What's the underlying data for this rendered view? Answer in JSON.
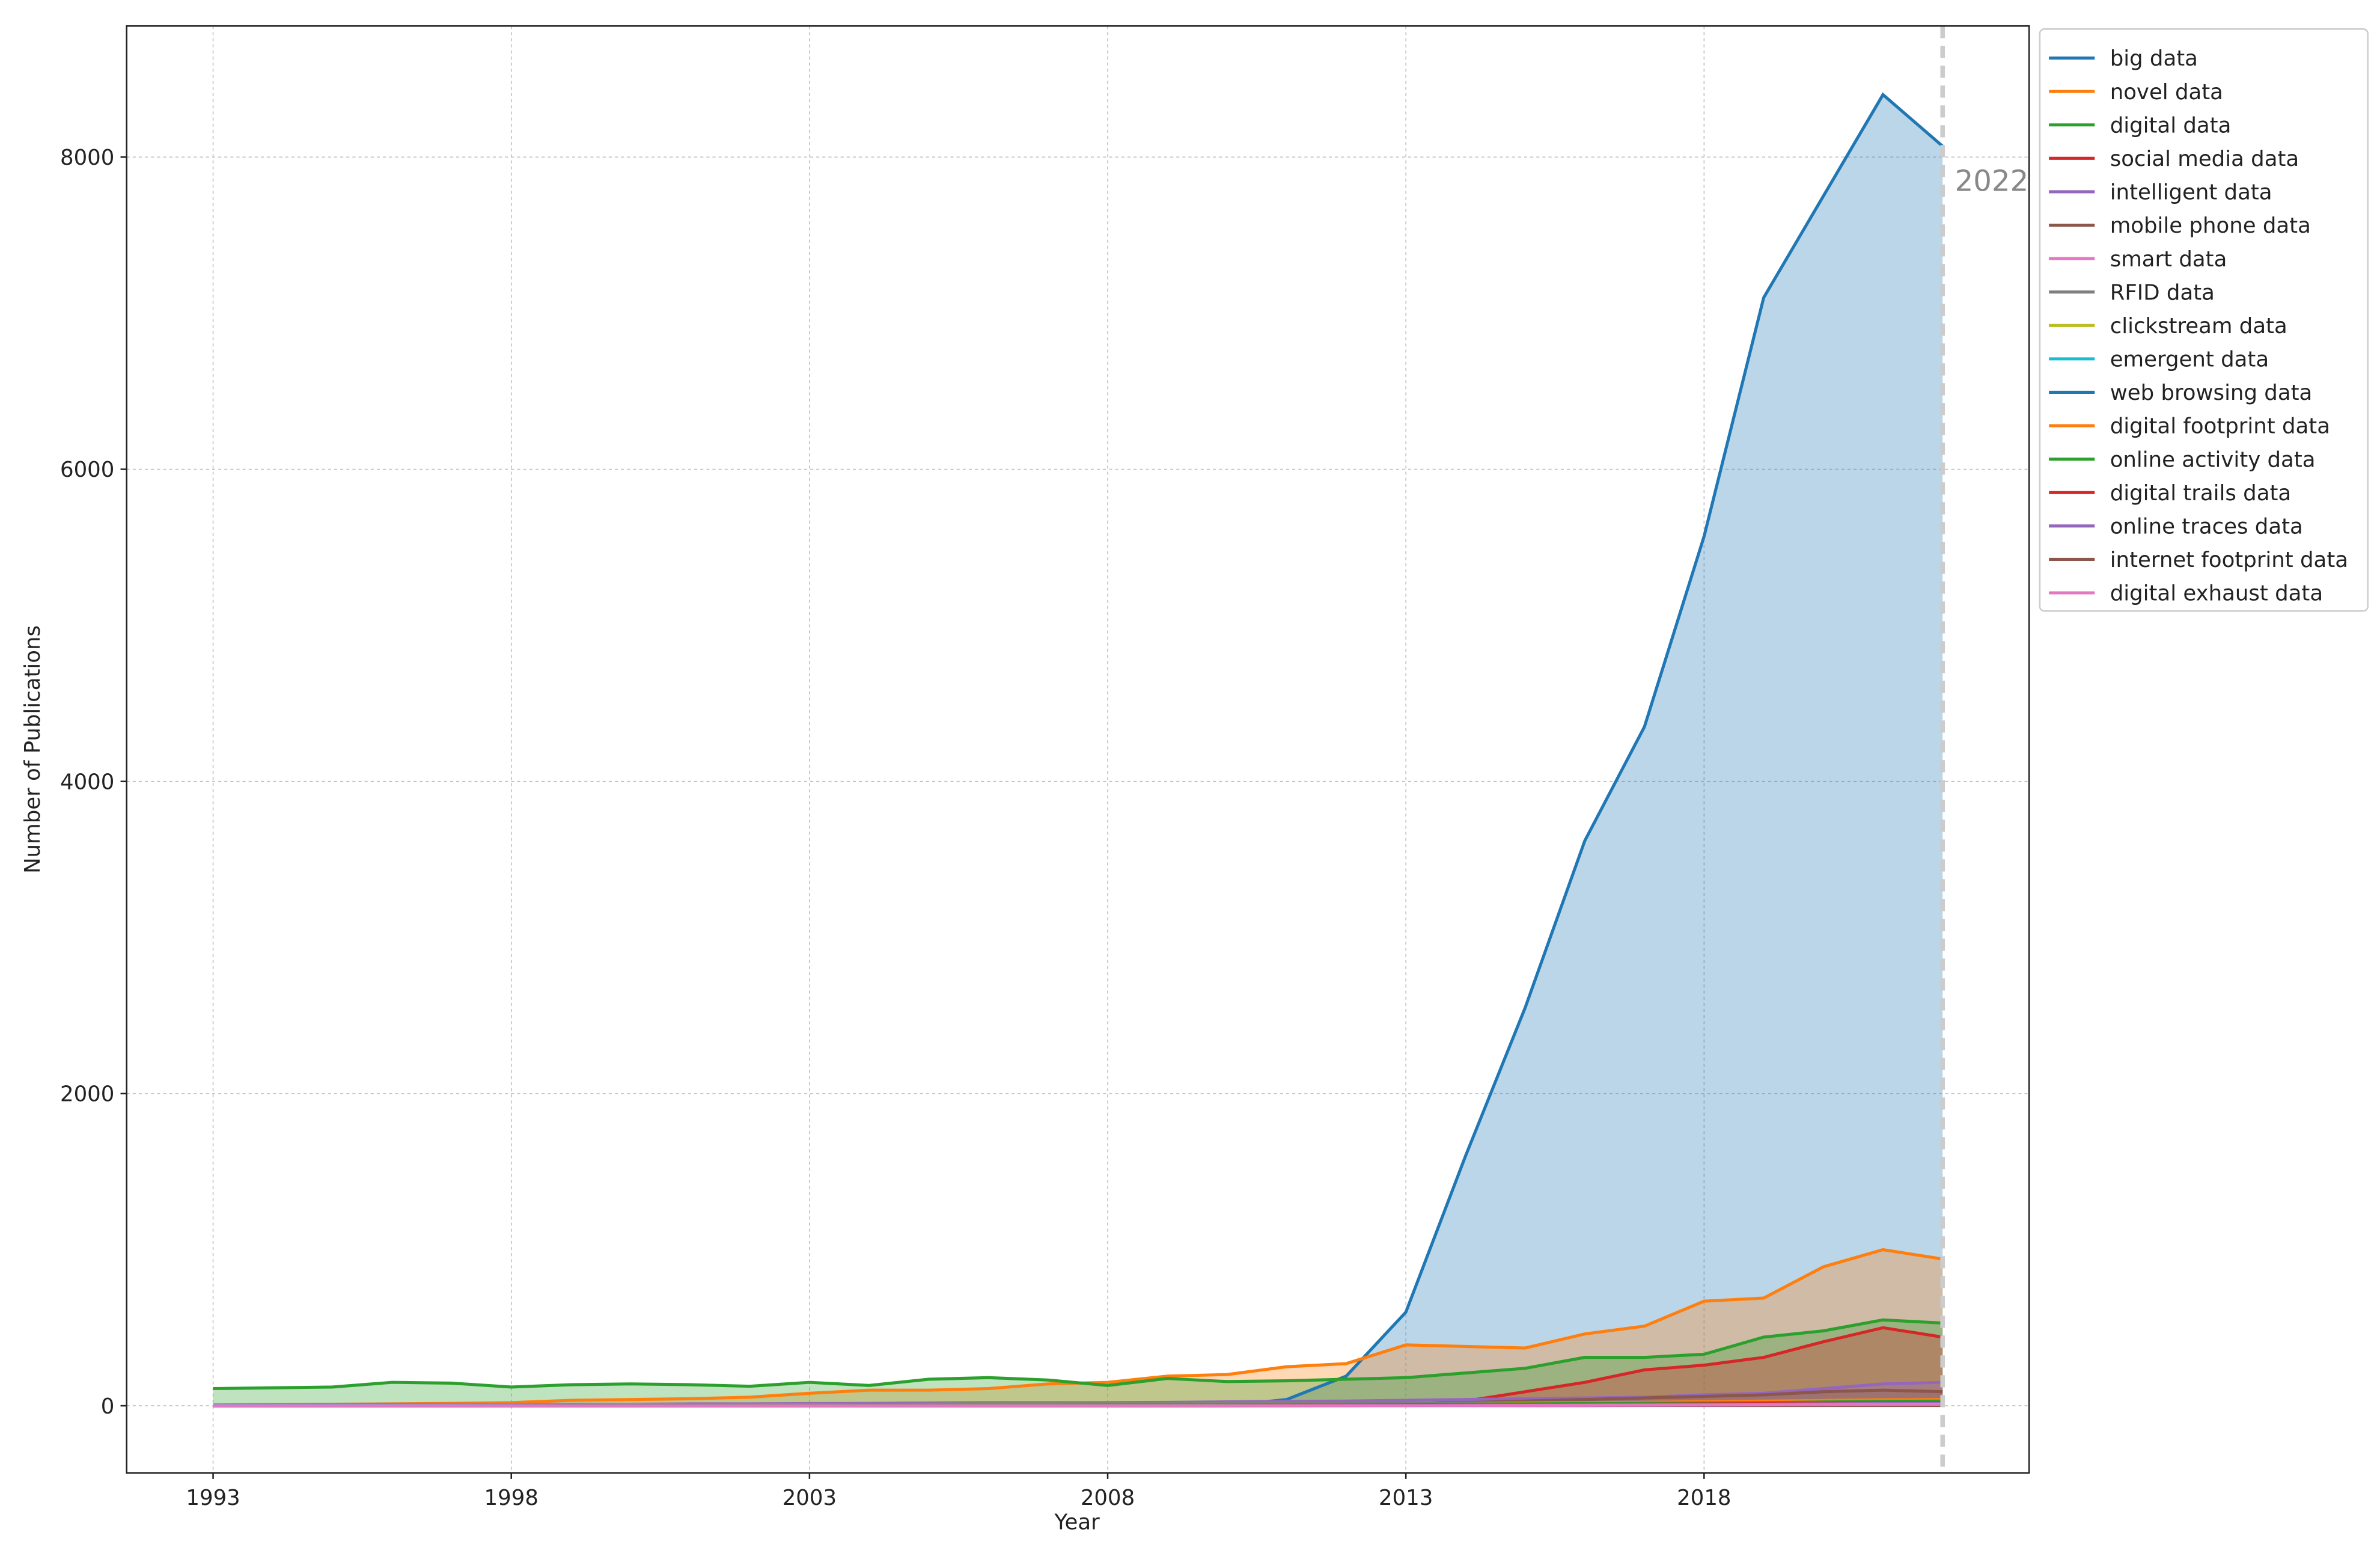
{
  "chart_data": {
    "type": "line",
    "fill_to_zero": true,
    "x_label": "Year",
    "y_label": "Number of Publications",
    "x": [
      1993,
      1994,
      1995,
      1996,
      1997,
      1998,
      1999,
      2000,
      2001,
      2002,
      2003,
      2004,
      2005,
      2006,
      2007,
      2008,
      2009,
      2010,
      2011,
      2012,
      2013,
      2014,
      2015,
      2016,
      2017,
      2018,
      2019,
      2020,
      2021,
      2022
    ],
    "xlim": [
      1991.55,
      2023.45
    ],
    "ylim": [
      -430,
      8840
    ],
    "xticks": [
      1993,
      1998,
      2003,
      2008,
      2013,
      2018
    ],
    "yticks": [
      0,
      2000,
      4000,
      6000,
      8000
    ],
    "grid": true,
    "legend": "outside-right",
    "annotation": {
      "x": 2022,
      "text": "2022",
      "color": "#cccccc"
    },
    "series": [
      {
        "name": "big data",
        "color": "#1f77b4",
        "values": [
          0,
          0,
          0,
          0,
          0,
          0,
          0,
          0,
          0,
          0,
          0,
          0,
          0,
          0,
          0,
          0,
          0,
          0,
          40,
          190,
          600,
          1600,
          2550,
          3620,
          4350,
          5570,
          7100,
          7750,
          8400,
          8070
        ]
      },
      {
        "name": "novel data",
        "color": "#ff7f0e",
        "values": [
          5,
          8,
          10,
          12,
          15,
          20,
          35,
          40,
          45,
          55,
          80,
          100,
          100,
          110,
          140,
          150,
          190,
          200,
          250,
          270,
          390,
          380,
          370,
          460,
          510,
          670,
          690,
          890,
          1000,
          940
        ]
      },
      {
        "name": "digital data",
        "color": "#2ca02c",
        "values": [
          110,
          115,
          120,
          150,
          145,
          120,
          135,
          140,
          135,
          125,
          150,
          130,
          170,
          180,
          165,
          130,
          175,
          155,
          160,
          170,
          180,
          210,
          240,
          310,
          310,
          330,
          440,
          480,
          550,
          530
        ]
      },
      {
        "name": "social media data",
        "color": "#d62728",
        "values": [
          0,
          0,
          0,
          0,
          0,
          0,
          0,
          0,
          0,
          0,
          0,
          0,
          0,
          0,
          0,
          0,
          0,
          0,
          0,
          2,
          5,
          30,
          90,
          150,
          230,
          260,
          310,
          410,
          500,
          440
        ]
      },
      {
        "name": "intelligent data",
        "color": "#9467bd",
        "values": [
          5,
          6,
          8,
          10,
          10,
          8,
          10,
          10,
          12,
          12,
          14,
          15,
          18,
          20,
          20,
          20,
          22,
          25,
          28,
          30,
          35,
          40,
          45,
          50,
          55,
          70,
          80,
          110,
          140,
          150
        ]
      },
      {
        "name": "mobile phone data",
        "color": "#8c564b",
        "values": [
          0,
          0,
          0,
          0,
          0,
          0,
          0,
          0,
          0,
          0,
          0,
          0,
          0,
          0,
          0,
          0,
          0,
          0,
          2,
          5,
          10,
          20,
          30,
          40,
          50,
          60,
          70,
          90,
          100,
          90
        ]
      },
      {
        "name": "smart data",
        "color": "#e377c2",
        "values": [
          3,
          3,
          4,
          4,
          5,
          5,
          5,
          6,
          6,
          6,
          7,
          7,
          8,
          8,
          8,
          9,
          9,
          10,
          10,
          12,
          14,
          16,
          18,
          20,
          22,
          25,
          28,
          30,
          32,
          30
        ]
      },
      {
        "name": "RFID data",
        "color": "#7f7f7f",
        "values": [
          0,
          0,
          0,
          0,
          0,
          0,
          0,
          0,
          0,
          0,
          2,
          5,
          10,
          15,
          18,
          20,
          20,
          18,
          18,
          17,
          16,
          15,
          15,
          14,
          14,
          14,
          13,
          13,
          12,
          12
        ]
      },
      {
        "name": "clickstream data",
        "color": "#bcbd22",
        "values": [
          0,
          0,
          0,
          0,
          1,
          2,
          3,
          5,
          6,
          6,
          7,
          7,
          8,
          8,
          8,
          8,
          8,
          8,
          8,
          8,
          8,
          8,
          8,
          8,
          8,
          9,
          9,
          9,
          9,
          9
        ]
      },
      {
        "name": "emergent data",
        "color": "#17becf",
        "values": [
          3,
          3,
          3,
          4,
          4,
          4,
          4,
          4,
          5,
          5,
          5,
          5,
          5,
          5,
          5,
          5,
          5,
          5,
          5,
          5,
          5,
          5,
          6,
          6,
          6,
          6,
          6,
          6,
          6,
          6
        ]
      },
      {
        "name": "web browsing data",
        "color": "#1f77b4",
        "values": [
          0,
          0,
          0,
          0,
          0,
          1,
          2,
          2,
          3,
          3,
          3,
          4,
          4,
          4,
          4,
          5,
          5,
          5,
          6,
          6,
          7,
          8,
          9,
          10,
          12,
          14,
          15,
          17,
          19,
          20
        ]
      },
      {
        "name": "digital footprint data",
        "color": "#ff7f0e",
        "values": [
          0,
          0,
          0,
          0,
          0,
          0,
          0,
          0,
          0,
          0,
          0,
          0,
          0,
          0,
          0,
          0,
          0,
          1,
          2,
          4,
          6,
          10,
          14,
          18,
          22,
          26,
          30,
          34,
          38,
          40
        ]
      },
      {
        "name": "online activity data",
        "color": "#2ca02c",
        "values": [
          0,
          0,
          0,
          0,
          0,
          0,
          1,
          1,
          1,
          2,
          2,
          2,
          3,
          3,
          3,
          4,
          4,
          5,
          6,
          7,
          8,
          10,
          12,
          14,
          16,
          18,
          20,
          24,
          28,
          30
        ]
      },
      {
        "name": "digital trails data",
        "color": "#d62728",
        "values": [
          0,
          0,
          0,
          0,
          0,
          0,
          0,
          0,
          0,
          0,
          0,
          0,
          0,
          0,
          0,
          0,
          0,
          0,
          1,
          2,
          3,
          4,
          6,
          8,
          10,
          12,
          14,
          16,
          18,
          20
        ]
      },
      {
        "name": "online traces data",
        "color": "#9467bd",
        "values": [
          0,
          0,
          0,
          0,
          0,
          0,
          0,
          0,
          0,
          0,
          0,
          0,
          0,
          0,
          0,
          0,
          0,
          0,
          0,
          1,
          2,
          3,
          4,
          5,
          6,
          8,
          10,
          12,
          14,
          15
        ]
      },
      {
        "name": "internet footprint data",
        "color": "#8c564b",
        "values": [
          0,
          0,
          0,
          0,
          0,
          0,
          0,
          0,
          0,
          0,
          0,
          0,
          0,
          0,
          0,
          0,
          0,
          0,
          0,
          0,
          1,
          1,
          1,
          1,
          2,
          2,
          2,
          2,
          2,
          2
        ]
      },
      {
        "name": "digital exhaust data",
        "color": "#e377c2",
        "values": [
          0,
          0,
          0,
          0,
          0,
          0,
          0,
          0,
          0,
          0,
          0,
          0,
          0,
          0,
          0,
          0,
          0,
          0,
          0,
          0,
          0,
          1,
          2,
          3,
          4,
          5,
          6,
          8,
          9,
          10
        ]
      }
    ]
  }
}
